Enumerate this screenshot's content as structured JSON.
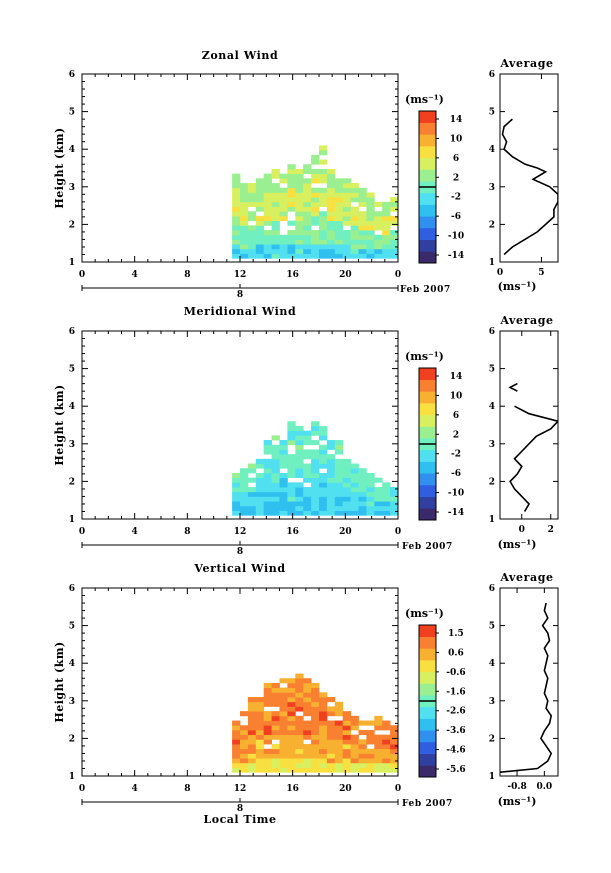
{
  "chart_data": [
    {
      "type": "heatmap",
      "title": "Zonal Wind",
      "xlabel": "",
      "ylabel": "Height (km)",
      "xlim": [
        0,
        24
      ],
      "ylim": [
        1,
        6
      ],
      "xticks": [
        "0",
        "4",
        "8",
        "12",
        "16",
        "20",
        "0"
      ],
      "yticks": [
        "1",
        "2",
        "3",
        "4",
        "5",
        "6"
      ],
      "date_axis": {
        "day": "8",
        "month_label": "Feb 2007"
      },
      "colorbar": {
        "unit": "(ms⁻¹)",
        "ticks": [
          "14",
          "10",
          "6",
          "2",
          "-2",
          "-6",
          "-10",
          "-14"
        ],
        "range": [
          -16,
          16
        ]
      },
      "field": {
        "echo_top_km": [
          0,
          0,
          0,
          0,
          0,
          0,
          0,
          0,
          0,
          0,
          0,
          0,
          0,
          0,
          0,
          0,
          0,
          0,
          0,
          3.3,
          3.1,
          3.1,
          3.2,
          3.3,
          3.4,
          3.3,
          3.5,
          3.4,
          3.6,
          3.8,
          4.1,
          3.5,
          3.3,
          3.2,
          3.0,
          2.9,
          2.8,
          2.7,
          2.6,
          2.7
        ],
        "value_top": 3,
        "value_mid": 5,
        "value_low": 1,
        "value_bottom": -3
      },
      "average_profile": {
        "title": "Average",
        "xlabel": "(ms⁻¹)",
        "xlim": [
          0,
          7
        ],
        "xticks": [
          "0",
          "5"
        ],
        "yticks": [
          "1",
          "2",
          "3",
          "4",
          "5",
          "6"
        ],
        "height_km": [
          1.2,
          1.4,
          1.6,
          1.8,
          2.0,
          2.2,
          2.4,
          2.6,
          2.8,
          3.0,
          3.2,
          3.4,
          3.5,
          3.6,
          3.8,
          4.0,
          4.2,
          4.4,
          4.6,
          4.8
        ],
        "value": [
          0.5,
          1.5,
          3.0,
          4.5,
          5.5,
          6.5,
          6.5,
          7.0,
          7.0,
          6.0,
          4.0,
          5.5,
          4.5,
          3.0,
          1.5,
          0.5,
          0.8,
          0.3,
          0.5,
          1.5
        ]
      }
    },
    {
      "type": "heatmap",
      "title": "Meridional Wind",
      "xlabel": "",
      "ylabel": "Height (km)",
      "xlim": [
        0,
        24
      ],
      "ylim": [
        1,
        6
      ],
      "xticks": [
        "0",
        "4",
        "8",
        "12",
        "16",
        "20",
        "0"
      ],
      "yticks": [
        "1",
        "2",
        "3",
        "4",
        "5",
        "6"
      ],
      "date_axis": {
        "day": "8",
        "month_label": "Feb 2007"
      },
      "colorbar": {
        "unit": "(ms⁻¹)",
        "ticks": [
          "14",
          "10",
          "6",
          "2",
          "-2",
          "-6",
          "-10",
          "-14"
        ],
        "range": [
          -16,
          16
        ]
      },
      "field": {
        "echo_top_km": [
          0,
          0,
          0,
          0,
          0,
          0,
          0,
          0,
          0,
          0,
          0,
          0,
          0,
          0,
          0,
          0,
          0,
          0,
          0,
          2.2,
          2.3,
          2.4,
          2.6,
          3.0,
          3.2,
          3.3,
          3.5,
          3.4,
          3.3,
          3.5,
          3.4,
          3.2,
          3.0,
          2.6,
          2.4,
          2.3,
          2.2,
          2.0,
          1.9,
          1.8
        ],
        "value_top": 0,
        "value_mid": -1,
        "value_low": -3,
        "value_bottom": -4
      },
      "average_profile": {
        "title": "Average",
        "xlabel": "(ms⁻¹)",
        "xlim": [
          -1.5,
          2.5
        ],
        "xticks": [
          "0",
          "2"
        ],
        "yticks": [
          "1",
          "2",
          "3",
          "4",
          "5",
          "6"
        ],
        "height_km": [
          1.2,
          1.4,
          1.6,
          1.8,
          2.0,
          2.2,
          2.4,
          2.6,
          2.8,
          3.0,
          3.2,
          3.4,
          3.6,
          3.8,
          4.0
        ],
        "value": [
          0.2,
          0.5,
          0.0,
          -0.5,
          -0.8,
          -0.3,
          0.0,
          -0.5,
          0.0,
          0.5,
          1.0,
          2.0,
          2.5,
          0.5,
          -0.5
        ],
        "extra_segment": {
          "height_km": [
            4.4,
            4.5,
            4.6
          ],
          "value": [
            -0.3,
            -0.8,
            -0.3
          ]
        }
      }
    },
    {
      "type": "heatmap",
      "title": "Vertical Wind",
      "xlabel": "Local Time",
      "ylabel": "Height (km)",
      "xlim": [
        0,
        24
      ],
      "ylim": [
        1,
        6
      ],
      "xticks": [
        "0",
        "4",
        "8",
        "12",
        "16",
        "20",
        "0"
      ],
      "yticks": [
        "1",
        "2",
        "3",
        "4",
        "5",
        "6"
      ],
      "date_axis": {
        "day": "8",
        "month_label": "Feb 2007"
      },
      "colorbar": {
        "unit": "(ms⁻¹)",
        "ticks": [
          "1.5",
          "0.6",
          "-0.6",
          "-1.6",
          "-2.6",
          "-3.6",
          "-4.6",
          "-5.6"
        ],
        "range": [
          -6,
          2
        ]
      },
      "field": {
        "echo_top_km": [
          0,
          0,
          0,
          0,
          0,
          0,
          0,
          0,
          0,
          0,
          0,
          0,
          0,
          0,
          0,
          0,
          0,
          0,
          0,
          2.4,
          2.7,
          3.0,
          3.2,
          3.4,
          3.5,
          3.6,
          3.6,
          3.7,
          3.6,
          3.4,
          3.3,
          3.1,
          2.9,
          2.7,
          2.6,
          2.5,
          2.4,
          2.5,
          2.4,
          2.3
        ],
        "value_top": 0.8,
        "value_mid": 1.1,
        "value_low": 0.5,
        "value_bottom": -0.5
      },
      "average_profile": {
        "title": "Average",
        "xlabel": "(ms⁻¹)",
        "xlim": [
          -1.3,
          0.4
        ],
        "xticks": [
          "-0.8",
          "0.0"
        ],
        "yticks": [
          "1",
          "2",
          "3",
          "4",
          "5",
          "6"
        ],
        "height_km": [
          1.1,
          1.2,
          1.4,
          1.6,
          1.8,
          2.0,
          2.2,
          2.4,
          2.6,
          2.8,
          3.0,
          3.2,
          3.4,
          3.6,
          3.8,
          4.0,
          4.2,
          4.4,
          4.6,
          4.8,
          5.0,
          5.2,
          5.4,
          5.6
        ],
        "value": [
          -1.3,
          -0.2,
          0.1,
          0.2,
          0.05,
          -0.1,
          0.0,
          0.15,
          0.2,
          0.05,
          0.1,
          0.0,
          0.05,
          0.1,
          0.0,
          0.05,
          0.1,
          0.0,
          0.15,
          0.1,
          -0.05,
          0.1,
          0.0,
          0.05
        ]
      }
    }
  ],
  "colors": {
    "palette": [
      "#3a2a6a",
      "#3040a0",
      "#2f5fe0",
      "#3090f0",
      "#30c0f0",
      "#50e0f0",
      "#70f0c0",
      "#9af090",
      "#d8f060",
      "#f8e040",
      "#f8b030",
      "#f88030",
      "#f04020"
    ]
  }
}
